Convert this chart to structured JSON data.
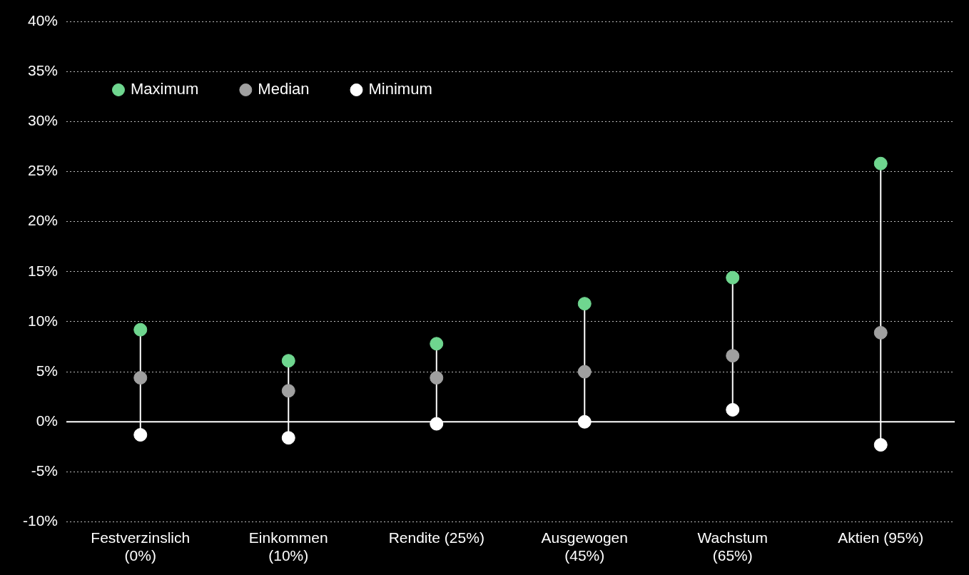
{
  "chart_data": {
    "type": "scatter",
    "categories": [
      "Festverzinslich\n(0%)",
      "Einkommen\n(10%)",
      "Rendite (25%)",
      "Ausgewogen\n(45%)",
      "Wachstum\n(65%)",
      "Aktien (95%)"
    ],
    "series": [
      {
        "name": "Maximum",
        "color": "#6fd68f",
        "values": [
          9.2,
          6.1,
          7.8,
          11.8,
          14.4,
          25.8
        ]
      },
      {
        "name": "Median",
        "color": "#a0a0a0",
        "values": [
          4.4,
          3.1,
          4.4,
          5.0,
          6.6,
          8.9
        ]
      },
      {
        "name": "Minimum",
        "color": "#ffffff",
        "values": [
          -1.3,
          -1.6,
          -0.2,
          0.0,
          1.2,
          -2.3
        ]
      }
    ],
    "ylim": [
      -10,
      40
    ],
    "yticks": [
      {
        "value": -10,
        "label": "-10%"
      },
      {
        "value": -5,
        "label": "-5%"
      },
      {
        "value": 0,
        "label": "0%"
      },
      {
        "value": 5,
        "label": "5%"
      },
      {
        "value": 10,
        "label": "10%"
      },
      {
        "value": 15,
        "label": "15%"
      },
      {
        "value": 20,
        "label": "20%"
      },
      {
        "value": 25,
        "label": "25%"
      },
      {
        "value": 30,
        "label": "30%"
      },
      {
        "value": 35,
        "label": "35%"
      },
      {
        "value": 40,
        "label": "40%"
      }
    ],
    "ref_lines": [
      {
        "axis": "y",
        "value": 0,
        "color": "#ffffff"
      }
    ],
    "grid": "y",
    "legend": "top left",
    "marker": "circle"
  }
}
